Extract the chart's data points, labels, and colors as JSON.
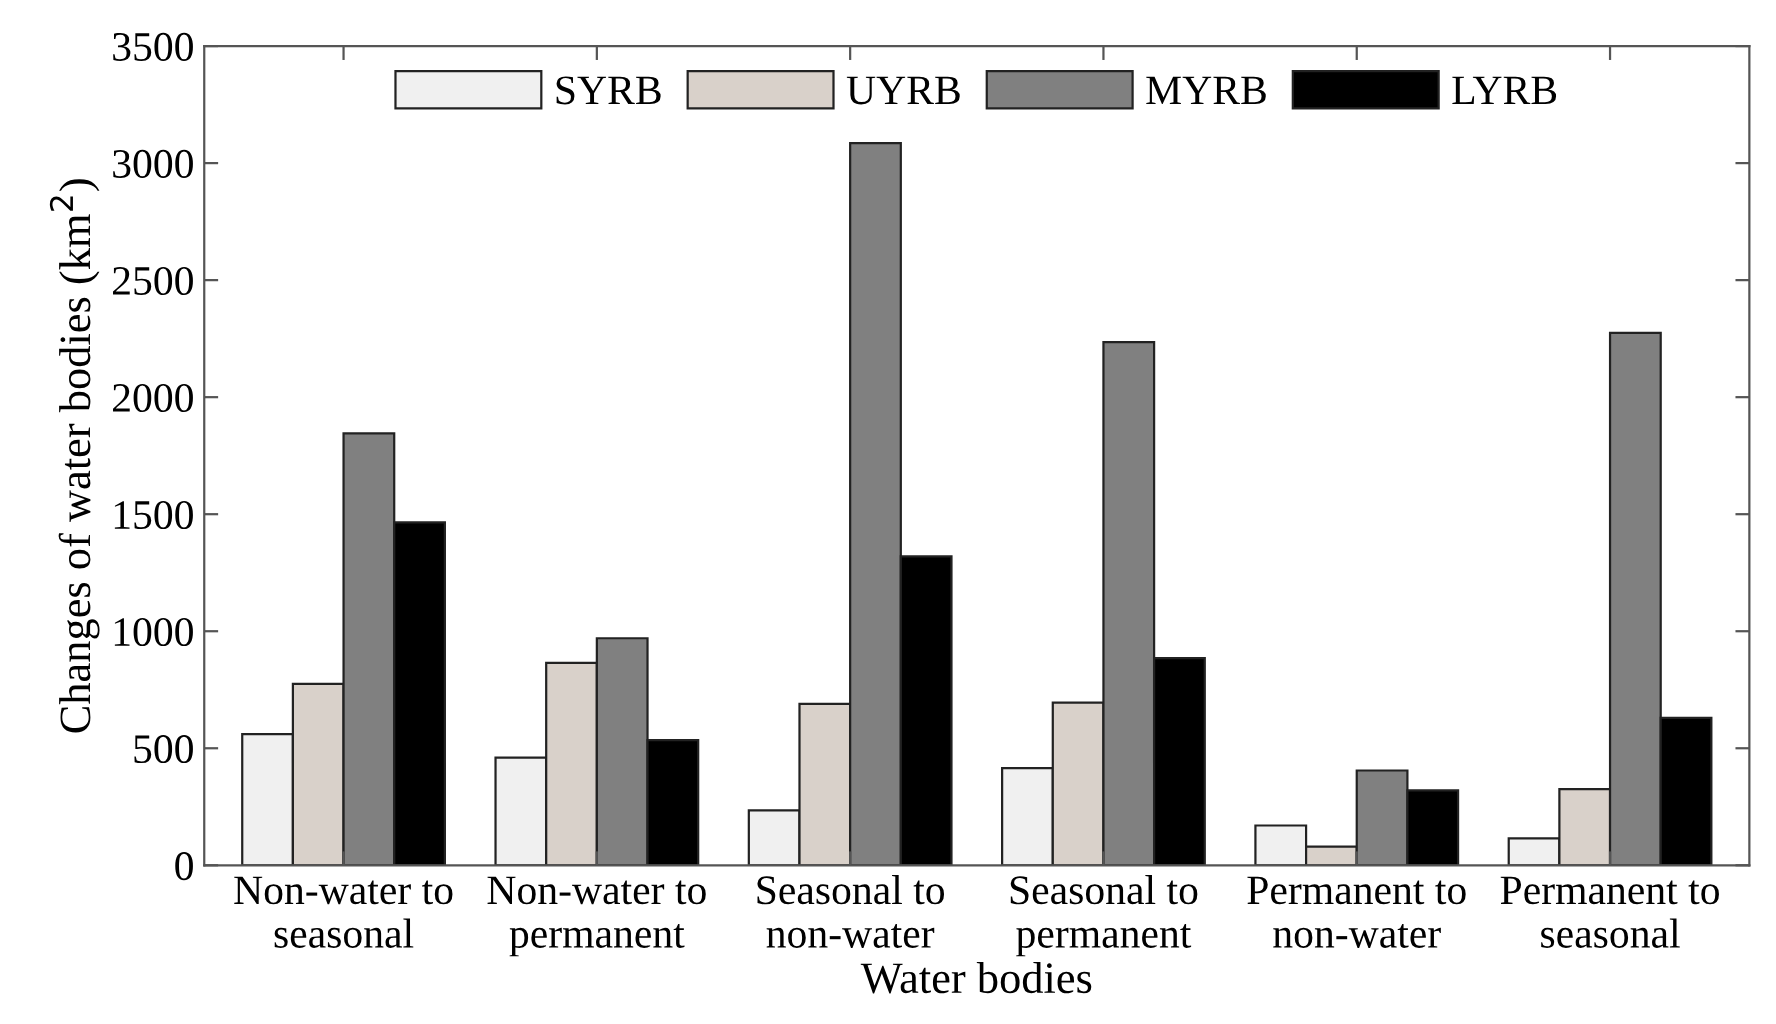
{
  "chart_data": {
    "type": "bar",
    "xlabel": "Water bodies",
    "ylabel": "Changes of water bodies (km$^{2}$)",
    "categories": [
      "Non-water to\nseasonal",
      "Non-water to\npermanent",
      "Seasonal to\nnon-water",
      "Seasonal to\npermanent",
      "Permanent to\nnon-water",
      "Permanent to\nseasonal"
    ],
    "series": [
      {
        "name": "SYRB",
        "color": "#f0f0f0",
        "values": [
          560,
          460,
          235,
          415,
          170,
          115
        ]
      },
      {
        "name": "UYRB",
        "color": "#d9d1ca",
        "values": [
          775,
          865,
          690,
          695,
          80,
          325
        ]
      },
      {
        "name": "MYRB",
        "color": "#808080",
        "values": [
          1845,
          970,
          3085,
          2235,
          405,
          2275
        ]
      },
      {
        "name": "LYRB",
        "color": "#000000",
        "values": [
          1465,
          535,
          1320,
          885,
          320,
          630
        ]
      }
    ],
    "ylim": [
      0,
      3500
    ],
    "yticks": [
      0,
      500,
      1000,
      1500,
      2000,
      2500,
      3000,
      3500
    ],
    "grid": false,
    "legend": "top"
  }
}
